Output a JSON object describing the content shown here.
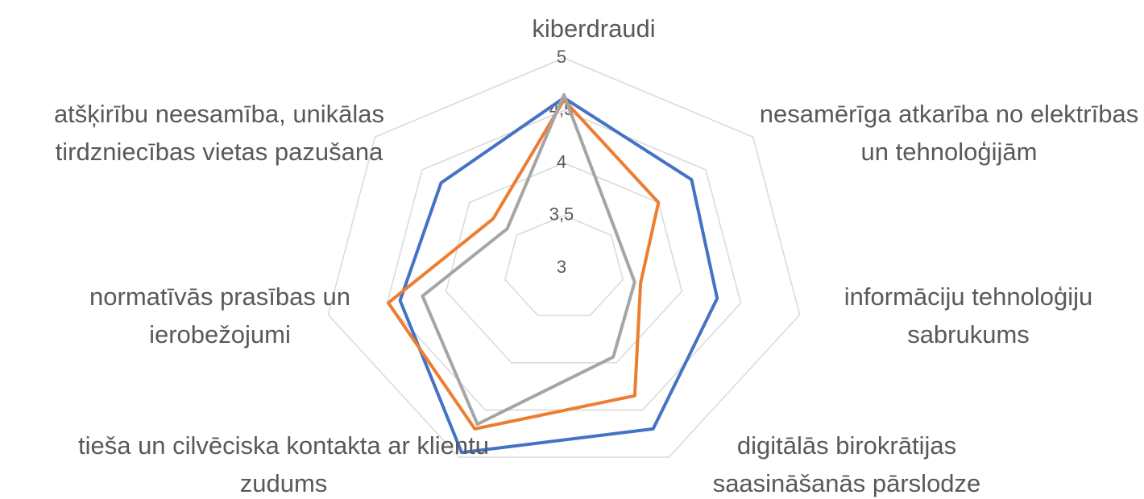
{
  "chart_data": {
    "type": "radar",
    "categories": [
      "kiberdraudi",
      "nesamērīga atkarība no elektrības un tehnoloģijām",
      "informāciju tehnoloģiju sabrukums",
      "digitālās birokrātijas saasināšanās pārslodze",
      "tieša un cilvēciska kontakta ar klientu zudums",
      "normatīvās prasības un ierobežojumi",
      "atšķirību neesamība, unikālas tirdzniecības vietas pazušana"
    ],
    "series": [
      {
        "color": "#4472c4",
        "values": [
          4.62,
          4.35,
          4.3,
          4.7,
          4.95,
          4.39,
          4.3
        ]
      },
      {
        "color": "#ed7d31",
        "values": [
          4.6,
          4.0,
          3.65,
          4.35,
          4.7,
          4.49,
          3.75
        ]
      },
      {
        "color": "#a5a5a5",
        "values": [
          4.65,
          3.55,
          3.6,
          3.94,
          4.65,
          4.2,
          3.6
        ]
      }
    ],
    "ylim": [
      3,
      5
    ],
    "yticks": [
      3,
      {
        "value": 3.5,
        "label": "3,5"
      },
      4,
      {
        "value": 4.5,
        "label": "4,5"
      },
      5
    ],
    "grid": true
  }
}
